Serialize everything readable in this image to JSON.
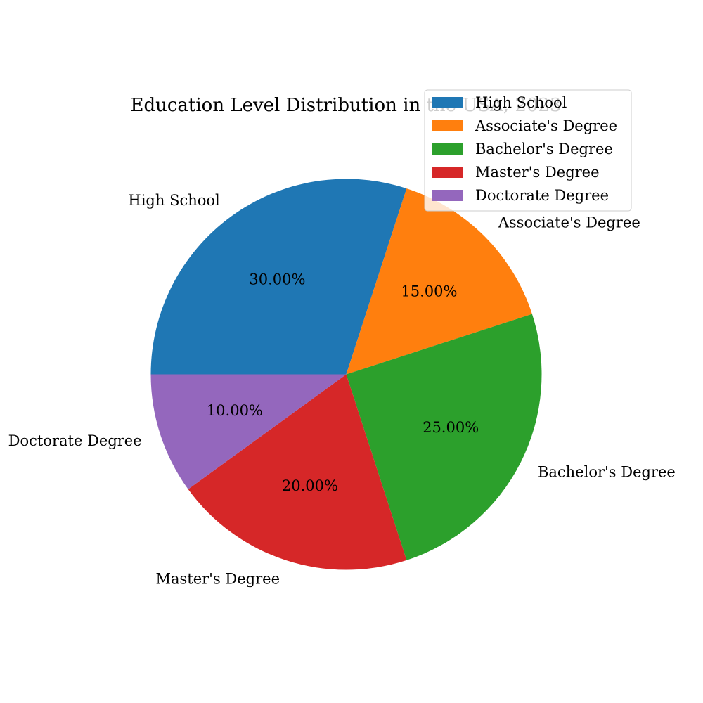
{
  "chart_data": {
    "type": "pie",
    "title": "Education Level Distribution in the USA, 2023",
    "categories": [
      "High School",
      "Associate's Degree",
      "Bachelor's Degree",
      "Master's Degree",
      "Doctorate Degree"
    ],
    "values": [
      30,
      15,
      25,
      20,
      10
    ],
    "value_labels": [
      "30.00%",
      "15.00%",
      "25.00%",
      "20.00%",
      "10.00%"
    ],
    "colors": [
      "#1f77b4",
      "#ff7f0e",
      "#2ca02c",
      "#d62728",
      "#9467bd"
    ],
    "start_angle_deg": 180,
    "direction": "clockwise",
    "legend": {
      "position": "top-right",
      "entries": [
        "High School",
        "Associate's Degree",
        "Bachelor's Degree",
        "Master's Degree",
        "Doctorate Degree"
      ]
    }
  }
}
